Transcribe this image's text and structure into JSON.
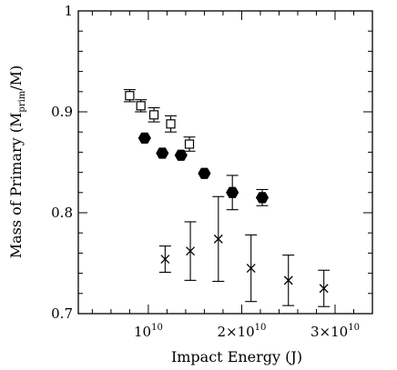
{
  "chart_data": {
    "type": "scatter",
    "title": "",
    "xlabel": "Impact Energy (J)",
    "ylabel": {
      "prefix": "Mass of Primary (M",
      "sub": "prim",
      "suffix": "/M)"
    },
    "xlim": [
      2500000000.0,
      34000000000.0
    ],
    "ylim": [
      0.7,
      1.0
    ],
    "grid": false,
    "x_ticks": [
      {
        "value": 10000000000.0,
        "mantissa": "10",
        "exponent": "10"
      },
      {
        "value": 20000000000.0,
        "mantissa": "2×10",
        "exponent": "10"
      },
      {
        "value": 30000000000.0,
        "mantissa": "3×10",
        "exponent": "10"
      }
    ],
    "y_ticks": [
      {
        "value": 0.7,
        "label": "0.7"
      },
      {
        "value": 0.8,
        "label": "0.8"
      },
      {
        "value": 0.9,
        "label": "0.9"
      },
      {
        "value": 1.0,
        "label": "1"
      }
    ],
    "series": [
      {
        "marker": "open-square",
        "points": [
          {
            "x": 8000000000.0,
            "y": 0.916,
            "err": 0.006
          },
          {
            "x": 9200000000.0,
            "y": 0.906,
            "err": 0.006
          },
          {
            "x": 10600000000.0,
            "y": 0.897,
            "err": 0.007
          },
          {
            "x": 12400000000.0,
            "y": 0.888,
            "err": 0.008
          },
          {
            "x": 14400000000.0,
            "y": 0.868,
            "err": 0.007
          }
        ]
      },
      {
        "marker": "filled-hexagon",
        "points": [
          {
            "x": 9600000000.0,
            "y": 0.874,
            "err": 0.0
          },
          {
            "x": 11500000000.0,
            "y": 0.859,
            "err": 0.0
          },
          {
            "x": 13500000000.0,
            "y": 0.857,
            "err": 0.0
          },
          {
            "x": 16000000000.0,
            "y": 0.839,
            "err": 0.0
          },
          {
            "x": 19000000000.0,
            "y": 0.82,
            "err": 0.017
          },
          {
            "x": 22200000000.0,
            "y": 0.815,
            "err": 0.008
          }
        ]
      },
      {
        "marker": "cross",
        "points": [
          {
            "x": 11800000000.0,
            "y": 0.754,
            "err": 0.013
          },
          {
            "x": 14500000000.0,
            "y": 0.762,
            "err": 0.029
          },
          {
            "x": 17500000000.0,
            "y": 0.774,
            "err": 0.042
          },
          {
            "x": 21000000000.0,
            "y": 0.745,
            "err": 0.033
          },
          {
            "x": 25000000000.0,
            "y": 0.733,
            "err": 0.025
          },
          {
            "x": 28800000000.0,
            "y": 0.725,
            "err": 0.018
          }
        ]
      }
    ]
  }
}
